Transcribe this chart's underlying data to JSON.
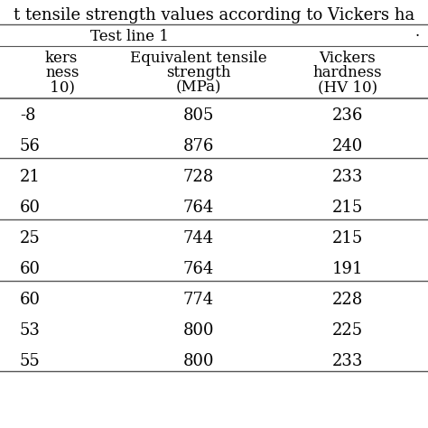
{
  "title": "t tensile strength values according to Vickers ha",
  "section_header": "Test line 1",
  "col1_header": [
    "kers",
    "ness",
    " 10)"
  ],
  "col2_header": [
    "Equivalent tensile",
    "strength",
    "(MPa)"
  ],
  "col3_header": [
    "Vickers",
    "hardness",
    "(HV 10)"
  ],
  "col1_partial": [
    "-8",
    "56",
    "21",
    "60",
    "25",
    "60",
    "60",
    "53",
    "55"
  ],
  "col2_values": [
    "805",
    "876",
    "728",
    "764",
    "744",
    "764",
    "774",
    "800",
    "800"
  ],
  "col3_values": [
    "236",
    "240",
    "233",
    "215",
    "215",
    "191",
    "228",
    "225",
    "233"
  ],
  "group_after_rows": [
    1,
    3,
    5
  ],
  "bg_color": "#ffffff",
  "text_color": "#000000",
  "title_fontsize": 13,
  "header_fontsize": 12,
  "data_fontsize": 13
}
